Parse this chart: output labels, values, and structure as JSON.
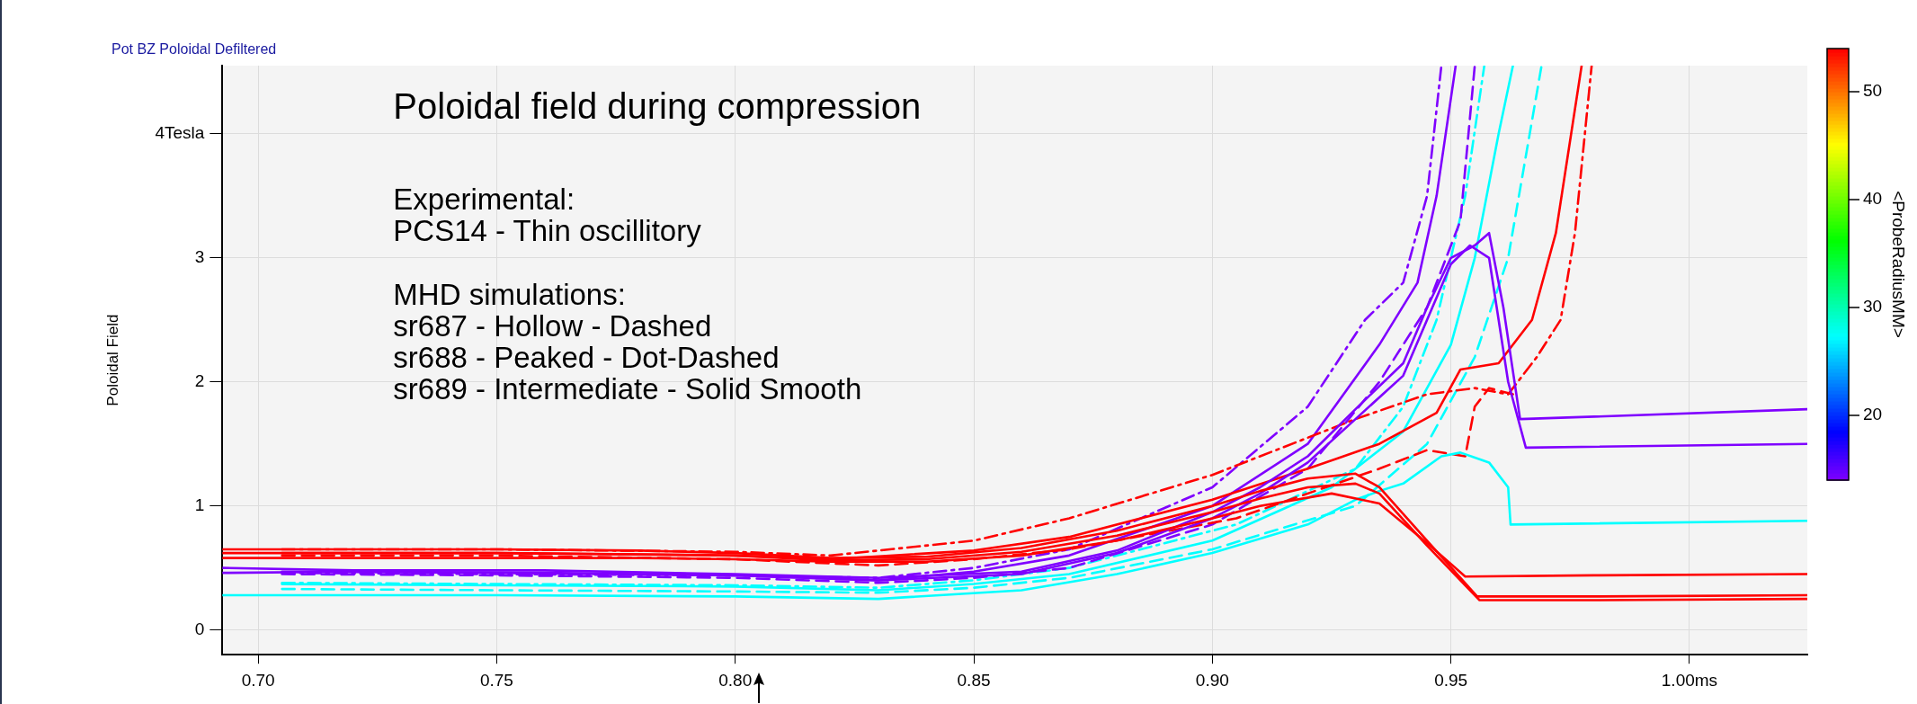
{
  "chart_data": {
    "type": "line",
    "title": "Pot BZ Poloidal Defiltered",
    "subtitle": "Poloidal field during compression",
    "annotations": [
      "Experimental:",
      "PCS14 - Thin oscillitory",
      "MHD simulations:",
      "sr687 - Hollow - Dashed",
      "sr688 - Peaked - Dot-Dashed",
      "sr689 - Intermediate - Solid Smooth"
    ],
    "ylabel": "Poloidal Field",
    "clabel": "<ProbeRadiusMM>",
    "clim": [
      14,
      54
    ],
    "cticks": [
      20,
      30,
      40,
      50
    ],
    "xlim": [
      0.6925,
      1.0247
    ],
    "ylim": [
      -0.2,
      4.55
    ],
    "xticks": [
      {
        "value": 0.7,
        "label": "0.70"
      },
      {
        "value": 0.75,
        "label": "0.75"
      },
      {
        "value": 0.8,
        "label": "0.80"
      },
      {
        "value": 0.85,
        "label": "0.85"
      },
      {
        "value": 0.9,
        "label": "0.90"
      },
      {
        "value": 0.95,
        "label": "0.95"
      },
      {
        "value": 1.0,
        "label": "1.00ms"
      }
    ],
    "yticks": [
      0,
      1,
      2,
      3,
      {
        "value": 4,
        "label": "4Tesla"
      }
    ],
    "grid": true,
    "legend": false,
    "marker": "none",
    "series": [
      {
        "color": "#ff0000",
        "line_style": "solid",
        "x": [
          0.6925,
          0.72,
          0.75,
          0.78,
          0.8,
          0.82,
          0.84,
          0.86,
          0.88,
          0.9,
          0.91,
          0.92,
          0.93,
          0.935,
          0.945,
          0.9555,
          0.98,
          1.0247
        ],
        "values": [
          0.65,
          0.65,
          0.65,
          0.64,
          0.62,
          0.58,
          0.59,
          0.66,
          0.8,
          1.0,
          1.12,
          1.22,
          1.26,
          1.15,
          0.72,
          0.27,
          0.27,
          0.28
        ]
      },
      {
        "color": "#ff0000",
        "line_style": "solid",
        "x": [
          0.6925,
          0.72,
          0.75,
          0.78,
          0.8,
          0.82,
          0.84,
          0.86,
          0.88,
          0.9,
          0.91,
          0.92,
          0.93,
          0.935,
          0.945,
          0.956,
          0.98,
          1.0247
        ],
        "values": [
          0.62,
          0.62,
          0.62,
          0.61,
          0.6,
          0.56,
          0.57,
          0.63,
          0.76,
          0.95,
          1.06,
          1.15,
          1.18,
          1.1,
          0.68,
          0.24,
          0.24,
          0.25
        ]
      },
      {
        "color": "#ff0000",
        "line_style": "solid",
        "x": [
          0.6925,
          0.72,
          0.75,
          0.78,
          0.8,
          0.82,
          0.84,
          0.86,
          0.88,
          0.9,
          0.91,
          0.925,
          0.935,
          0.945,
          0.953,
          0.98,
          1.0247
        ],
        "values": [
          0.58,
          0.58,
          0.58,
          0.58,
          0.57,
          0.55,
          0.55,
          0.6,
          0.72,
          0.9,
          1.0,
          1.1,
          1.02,
          0.7,
          0.43,
          0.44,
          0.45
        ]
      },
      {
        "color": "#7f00ff",
        "line_style": "solid",
        "x": [
          0.6925,
          0.72,
          0.76,
          0.8,
          0.83,
          0.86,
          0.88,
          0.9,
          0.91,
          0.92,
          0.93,
          0.94,
          0.945,
          0.95,
          0.954,
          0.958,
          0.962,
          0.9657,
          1.0247
        ],
        "values": [
          0.46,
          0.47,
          0.46,
          0.44,
          0.4,
          0.45,
          0.62,
          0.9,
          1.1,
          1.35,
          1.7,
          2.05,
          2.5,
          2.95,
          3.1,
          3.0,
          2.0,
          1.47,
          1.5
        ]
      },
      {
        "color": "#7f00ff",
        "line_style": "solid",
        "x": [
          0.6925,
          0.72,
          0.76,
          0.8,
          0.83,
          0.86,
          0.88,
          0.9,
          0.91,
          0.92,
          0.93,
          0.94,
          0.945,
          0.95,
          0.955,
          0.958,
          0.961,
          0.9645,
          0.98,
          1.0247
        ],
        "values": [
          0.5,
          0.48,
          0.48,
          0.45,
          0.42,
          0.47,
          0.64,
          0.95,
          1.15,
          1.4,
          1.78,
          2.15,
          2.6,
          3.0,
          3.1,
          3.2,
          2.6,
          1.7,
          1.72,
          1.78
        ]
      },
      {
        "color": "#00ffff",
        "line_style": "solid",
        "x": [
          0.6925,
          0.75,
          0.8,
          0.83,
          0.86,
          0.88,
          0.9,
          0.92,
          0.93,
          0.935,
          0.94,
          0.948,
          0.952,
          0.958,
          0.962,
          0.9625,
          1.0247
        ],
        "values": [
          0.28,
          0.28,
          0.27,
          0.25,
          0.32,
          0.45,
          0.62,
          0.85,
          1.05,
          1.12,
          1.18,
          1.4,
          1.43,
          1.35,
          1.15,
          0.85,
          0.88
        ]
      },
      {
        "color": "#ff0000",
        "line_style": "solid",
        "x": [
          0.705,
          0.75,
          0.8,
          0.82,
          0.85,
          0.87,
          0.9,
          0.92,
          0.935,
          0.947,
          0.952,
          0.96,
          0.967,
          0.972,
          0.9774
        ],
        "values": [
          0.62,
          0.62,
          0.6,
          0.57,
          0.64,
          0.75,
          1.05,
          1.3,
          1.5,
          1.75,
          2.1,
          2.15,
          2.5,
          3.2,
          4.55
        ]
      },
      {
        "color": "#ff0000",
        "line_style": "dashdot",
        "x": [
          0.705,
          0.75,
          0.8,
          0.82,
          0.85,
          0.87,
          0.9,
          0.93,
          0.945,
          0.955,
          0.962,
          0.968,
          0.973,
          0.976,
          0.9795
        ],
        "values": [
          0.65,
          0.65,
          0.63,
          0.6,
          0.72,
          0.9,
          1.25,
          1.7,
          1.9,
          1.95,
          1.9,
          2.2,
          2.5,
          3.2,
          4.55
        ]
      },
      {
        "color": "#ff0000",
        "line_style": "dashed",
        "x": [
          0.705,
          0.75,
          0.8,
          0.83,
          0.85,
          0.87,
          0.905,
          0.935,
          0.945,
          0.953,
          0.955,
          0.958,
          0.963
        ],
        "values": [
          0.6,
          0.6,
          0.57,
          0.52,
          0.57,
          0.65,
          0.9,
          1.3,
          1.45,
          1.4,
          1.8,
          1.95,
          1.9
        ]
      },
      {
        "color": "#7f00ff",
        "line_style": "solid",
        "x": [
          0.705,
          0.75,
          0.8,
          0.83,
          0.85,
          0.87,
          0.9,
          0.92,
          0.935,
          0.943,
          0.947,
          0.951
        ],
        "values": [
          0.47,
          0.46,
          0.44,
          0.4,
          0.47,
          0.6,
          1.0,
          1.5,
          2.3,
          2.8,
          3.5,
          4.55
        ]
      },
      {
        "color": "#7f00ff",
        "line_style": "dashdot",
        "x": [
          0.705,
          0.75,
          0.8,
          0.83,
          0.85,
          0.87,
          0.9,
          0.92,
          0.932,
          0.94,
          0.945,
          0.948
        ],
        "values": [
          0.46,
          0.45,
          0.44,
          0.42,
          0.5,
          0.65,
          1.15,
          1.8,
          2.5,
          2.8,
          3.5,
          4.55
        ]
      },
      {
        "color": "#7f00ff",
        "line_style": "dashed",
        "x": [
          0.705,
          0.75,
          0.8,
          0.83,
          0.85,
          0.87,
          0.9,
          0.92,
          0.935,
          0.945,
          0.952,
          0.955
        ],
        "values": [
          0.45,
          0.44,
          0.42,
          0.38,
          0.42,
          0.5,
          0.85,
          1.3,
          2.0,
          2.6,
          3.3,
          4.55
        ]
      },
      {
        "color": "#00ffff",
        "line_style": "solid",
        "x": [
          0.705,
          0.75,
          0.8,
          0.83,
          0.85,
          0.87,
          0.9,
          0.925,
          0.94,
          0.95,
          0.955,
          0.96,
          0.963
        ],
        "values": [
          0.37,
          0.36,
          0.35,
          0.32,
          0.37,
          0.45,
          0.72,
          1.15,
          1.6,
          2.3,
          3.0,
          4.0,
          4.55
        ]
      },
      {
        "color": "#00ffff",
        "line_style": "dashdot",
        "x": [
          0.705,
          0.75,
          0.8,
          0.83,
          0.85,
          0.87,
          0.905,
          0.93,
          0.94,
          0.947,
          0.953,
          0.957
        ],
        "values": [
          0.38,
          0.37,
          0.36,
          0.34,
          0.4,
          0.5,
          0.85,
          1.3,
          1.8,
          2.5,
          3.5,
          4.55
        ]
      },
      {
        "color": "#00ffff",
        "line_style": "dashed",
        "x": [
          0.705,
          0.75,
          0.8,
          0.83,
          0.85,
          0.87,
          0.9,
          0.93,
          0.945,
          0.955,
          0.962,
          0.969
        ],
        "values": [
          0.33,
          0.32,
          0.31,
          0.3,
          0.34,
          0.42,
          0.65,
          1.0,
          1.5,
          2.2,
          3.0,
          4.55
        ]
      }
    ]
  }
}
